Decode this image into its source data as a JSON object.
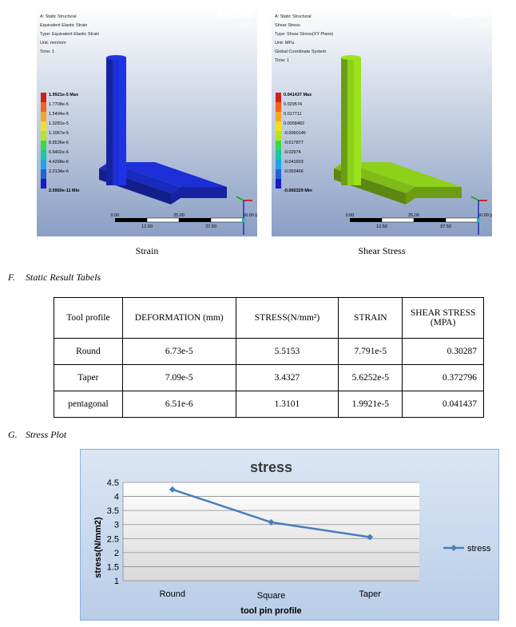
{
  "figures": [
    {
      "caption": "Strain",
      "brand": "ANSYS",
      "version": "R14.5",
      "info": [
        "A: Static Structural",
        "Equivalent Elastic Strain",
        "Type: Equivalent Elastic Strain",
        "Unit: mm/mm",
        "Time: 1"
      ],
      "legend_max": "1.9921e-5 Max",
      "legend": [
        "1.7708e-5",
        "1.5494e-5",
        "1.3281e-5",
        "1.1067e-5",
        "8.8536e-6",
        "6.6402e-6",
        "4.4268e-6",
        "2.2134e-6"
      ],
      "legend_min": "2.5950e-11 Min",
      "legend_colors": [
        "#d0201c",
        "#f0641e",
        "#f5a623",
        "#f4e11c",
        "#b5e61d",
        "#39d94a",
        "#19c9a5",
        "#1fa3e6",
        "#2361d8",
        "#1a1ac8"
      ],
      "model_color": "#1c2fd6",
      "scale_top": [
        "0.00",
        "25.00",
        "50.00 (mm)"
      ],
      "scale_bottom": [
        "12.50",
        "37.50"
      ]
    },
    {
      "caption": "Shear Stress",
      "brand": "ANSYS",
      "version": "R14.5",
      "info": [
        "A: Static Structural",
        "Shear Stress",
        "Type: Shear Stress(XY Plane)",
        "Unit: MPa",
        "Global Coordinate System",
        "Time: 1"
      ],
      "legend_max": "0.041437 Max",
      "legend": [
        "0.029574",
        "0.017711",
        "0.0058482",
        "-0.0060146",
        "-0.017877",
        "-0.02974",
        "-0.041603",
        "-0.053466"
      ],
      "legend_min": "-0.065329 Min",
      "legend_colors": [
        "#d0201c",
        "#f0641e",
        "#f5a623",
        "#f4e11c",
        "#b5e61d",
        "#39d94a",
        "#19c9a5",
        "#1fa3e6",
        "#2361d8",
        "#1a1ac8"
      ],
      "model_color": "#8ed11b",
      "scale_top": [
        "0.00",
        "25.00",
        "50.00 (mm)"
      ],
      "scale_bottom": [
        "12.50",
        "37.50"
      ]
    }
  ],
  "section_f": {
    "num": "F.",
    "title": "Static Result Tabels"
  },
  "table": {
    "headers": [
      "Tool profile",
      "DEFORMATION (mm)",
      "STRESS(N/mm²)",
      "STRAIN",
      "SHEAR STRESS (MPA)"
    ],
    "rows": [
      [
        "Round",
        "6.73e-5",
        "5.5153",
        "7.791e-5",
        "0.30287"
      ],
      [
        "Taper",
        "7.09e-5",
        "3.4327",
        "5.6252e-5",
        "0.372796"
      ],
      [
        "pentagonal",
        "6.51e-6",
        "1.3101",
        "1.9921e-5",
        "0.041437"
      ]
    ]
  },
  "section_g": {
    "num": "G.",
    "title": "Stress Plot"
  },
  "chart_data": {
    "type": "line",
    "title": "stress",
    "xlabel": "tool pin profile",
    "ylabel": "stress(N/mm2)",
    "categories": [
      "Round",
      "Square",
      "Taper"
    ],
    "series": [
      {
        "name": "stress",
        "values": [
          4.25,
          3.08,
          2.55
        ]
      }
    ],
    "ylim": [
      1,
      4.5
    ],
    "yticks": [
      "1",
      "1.5",
      "2",
      "2.5",
      "3",
      "3.5",
      "4",
      "4.5"
    ],
    "grid": true,
    "legend": "right",
    "colors": {
      "line": "#4a7ebb",
      "plot_bg_top": "#ffffff",
      "plot_bg_bottom": "#d9d9d9",
      "frame_bg_top": "#dbe6f4",
      "frame_bg_bottom": "#b9cde8",
      "title": "#3a3a3a"
    }
  }
}
